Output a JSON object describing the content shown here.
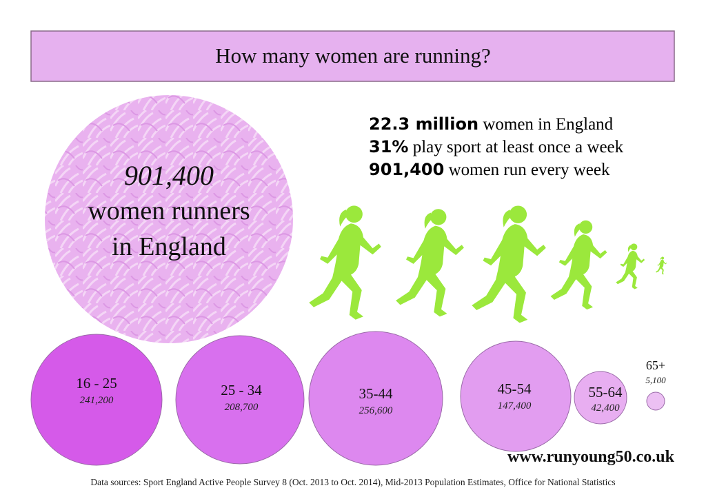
{
  "title": "How many women are running?",
  "headline": {
    "value": "901,400",
    "line1": "women runners",
    "line2": "in England"
  },
  "facts": [
    {
      "bold": "22.3 million",
      "text": "women in England"
    },
    {
      "bold": "31%",
      "text": "play sport at least once a week"
    },
    {
      "bold": "901,400",
      "text": "women run every week"
    }
  ],
  "age_groups": [
    {
      "label": "16 - 25",
      "count": "241,200"
    },
    {
      "label": "25 - 34",
      "count": "208,700"
    },
    {
      "label": "35-44",
      "count": "256,600"
    },
    {
      "label": "45-54",
      "count": "147,400"
    },
    {
      "label": "55-64",
      "count": "42,400"
    },
    {
      "label": "65+",
      "count": "5,100"
    }
  ],
  "website": "www.runyoung50.co.uk",
  "sources": "Data sources: Sport England Active People Survey 8 (Oct. 2013 to Oct. 2014), Mid-2013 Population Estimates, Office for National Statistics"
}
